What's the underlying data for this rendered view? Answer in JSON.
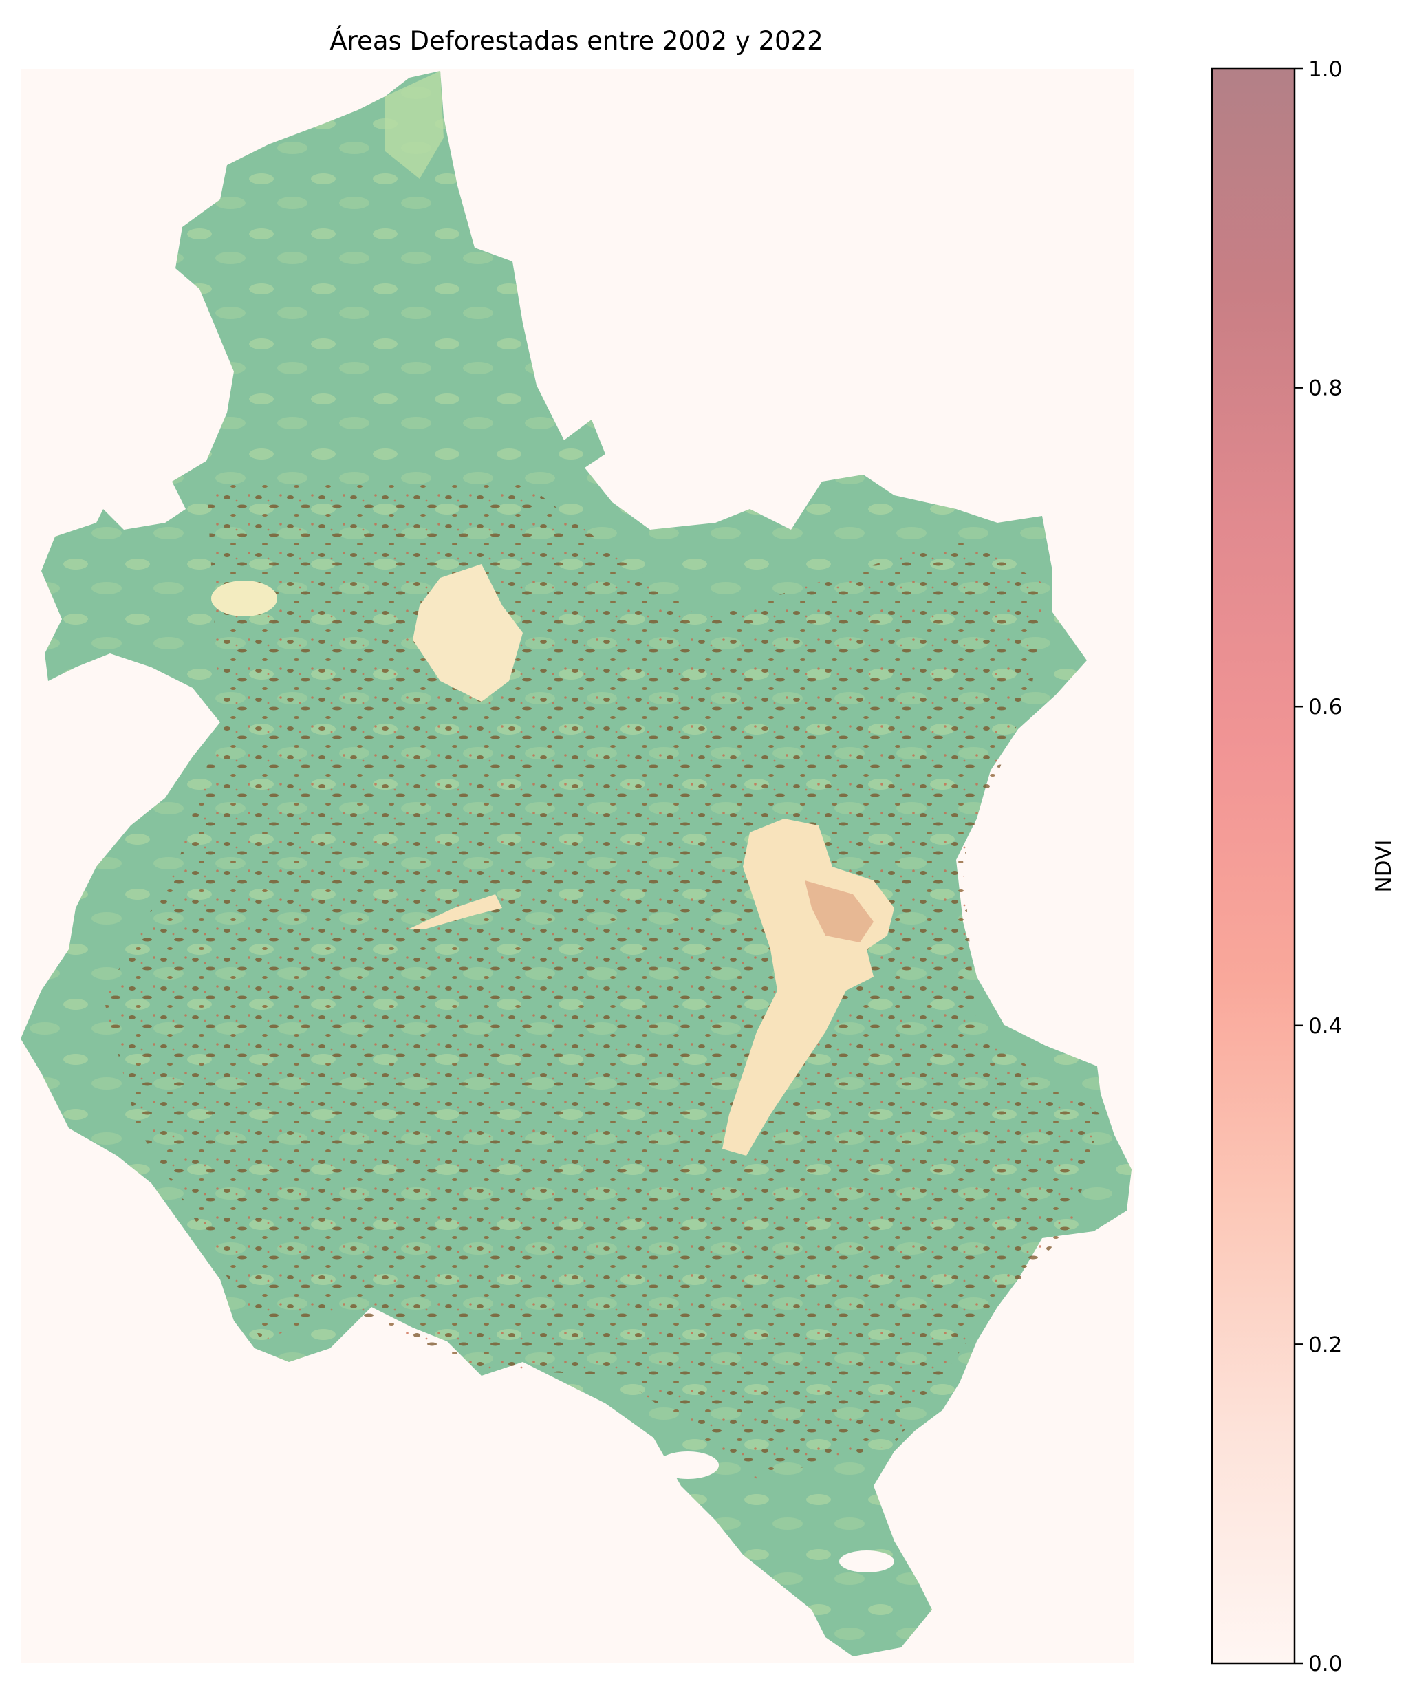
{
  "chart_data": {
    "type": "heatmap",
    "title": "Áreas Deforestadas entre 2002 y 2022",
    "colorbar": {
      "label": "NDVI",
      "range": [
        0.0,
        1.0
      ],
      "ticks": [
        0.0,
        0.2,
        0.4,
        0.6,
        0.8,
        1.0
      ],
      "tick_labels": [
        "0.0",
        "0.2",
        "0.4",
        "0.6",
        "0.8",
        "1.0"
      ],
      "colormap": [
        "#fff6f3",
        "#fde3da",
        "#fcc8b8",
        "#f9a89b",
        "#f19595",
        "#e18a8f",
        "#c97f85",
        "#b38087"
      ]
    },
    "axes_visible": false,
    "map_colors": {
      "background": "#fff8f5",
      "vegetation": "#86c29e",
      "light_vegetation": "#b8dca4",
      "bare_soil": "#f8e3bc",
      "deforested": "#7a5227",
      "urban_red": "#c8664a"
    }
  }
}
